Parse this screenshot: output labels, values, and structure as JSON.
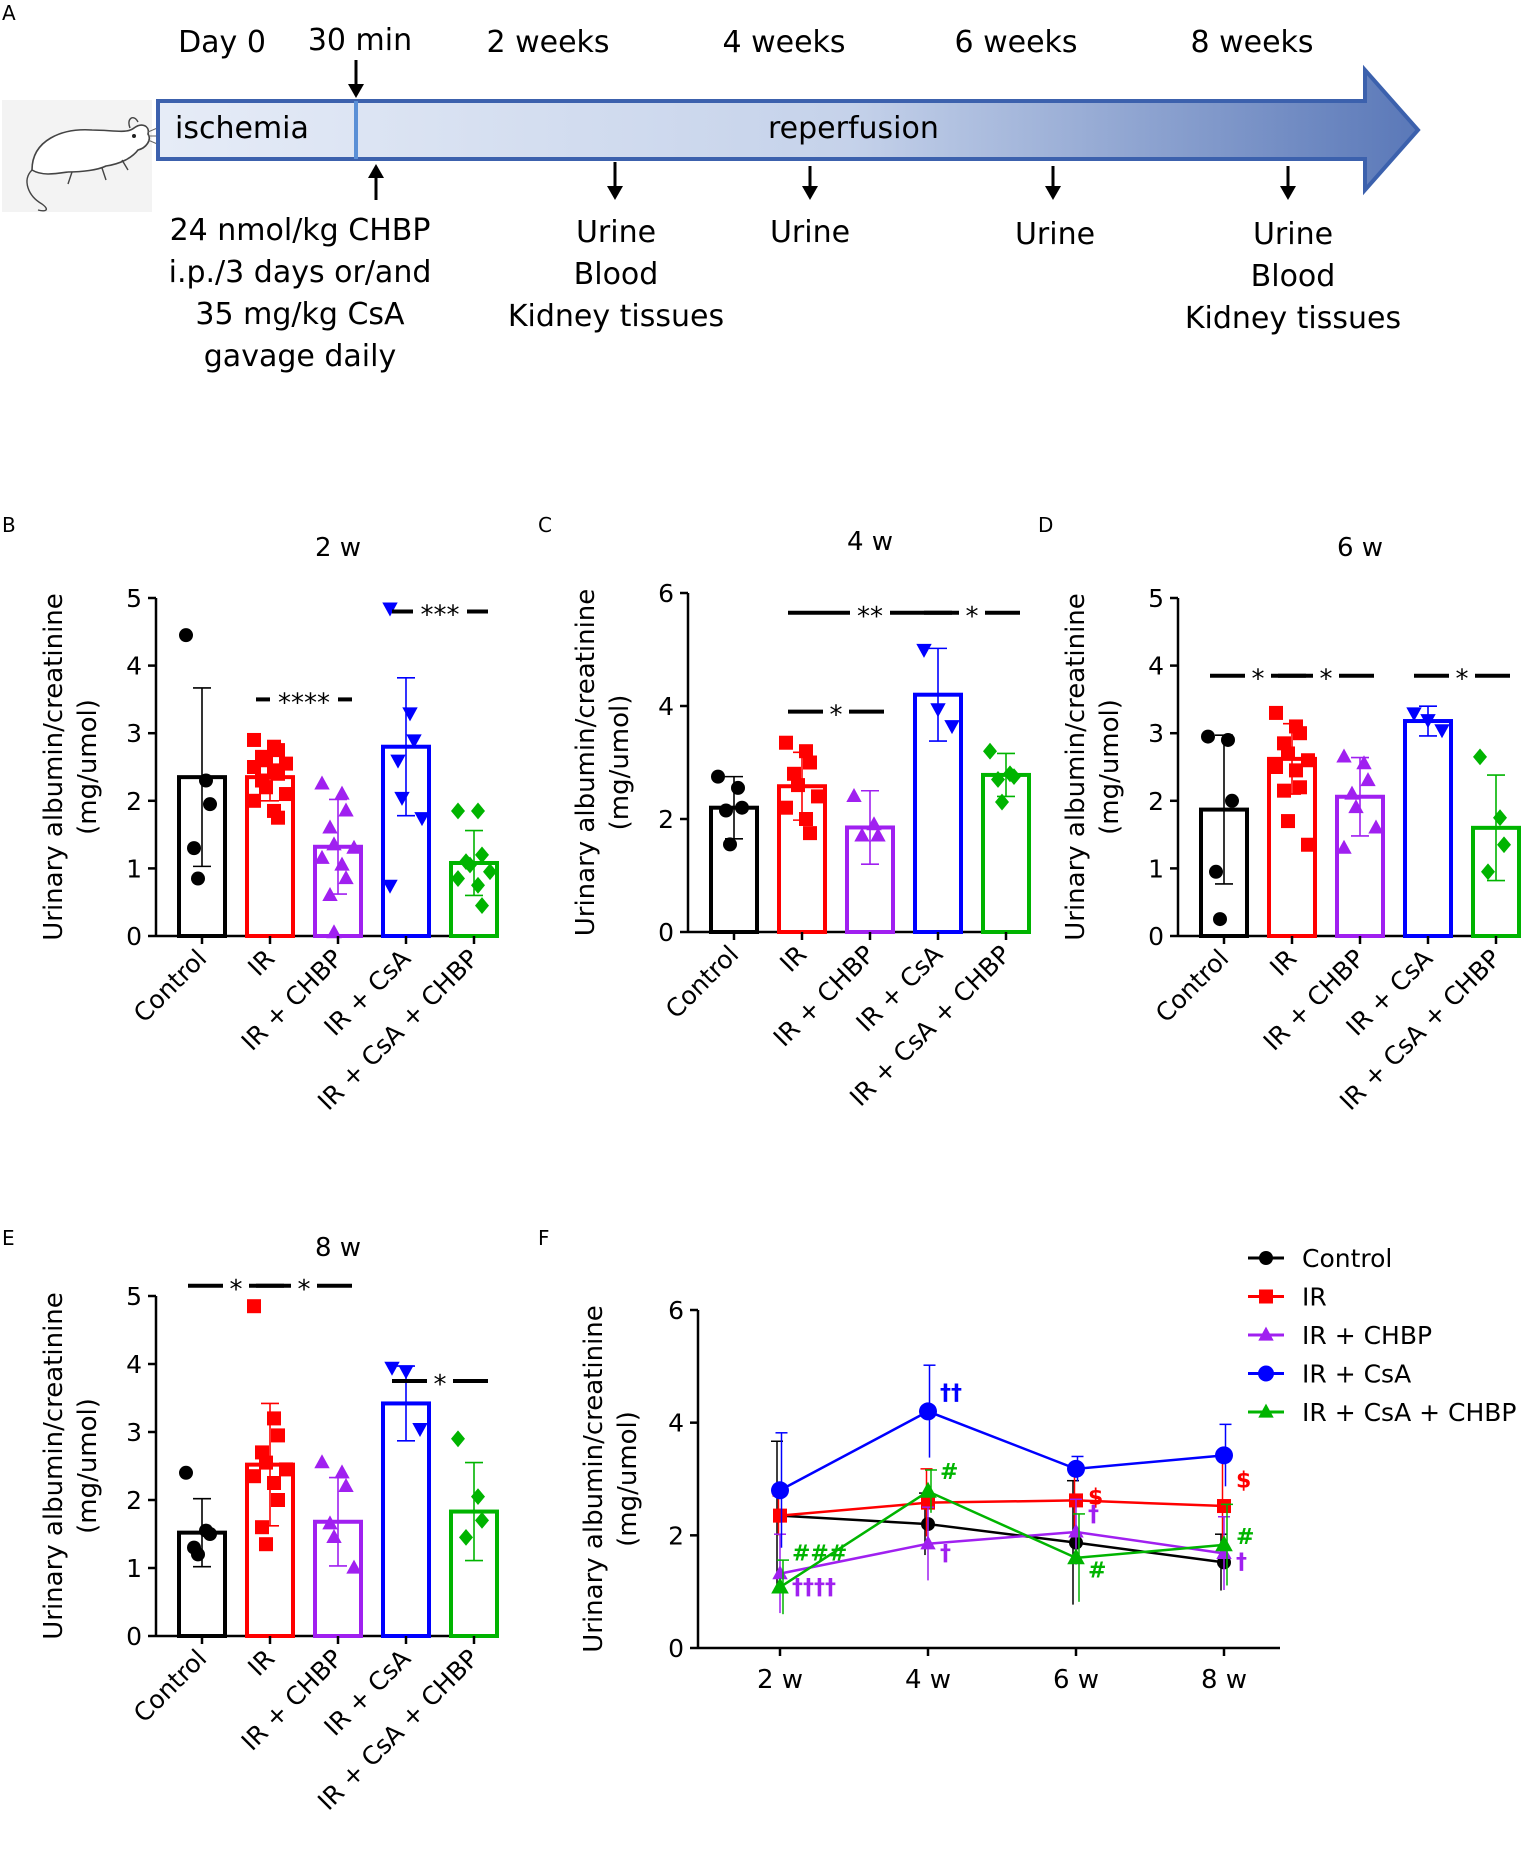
{
  "colors": {
    "Control": "#000000",
    "IR": "#ff0000",
    "IR + CHBP": "#a020f0",
    "IR + CsA": "#0000ff",
    "IR + CsA + CHBP": "#00b400"
  },
  "timeline": {
    "label": "A",
    "times": [
      "Day 0",
      "30 min",
      "2 weeks",
      "4 weeks",
      "6 weeks",
      "8 weeks"
    ],
    "phase1": "ischemia",
    "phase2": "reperfusion",
    "treatment": [
      "24 nmol/kg CHBP",
      "i.p./3 days or/and",
      "35 mg/kg CsA",
      "gavage daily"
    ],
    "samples_2w": [
      "Urine",
      "Blood",
      "Kidney tissues"
    ],
    "samples_4w": [
      "Urine"
    ],
    "samples_6w": [
      "Urine"
    ],
    "samples_8w": [
      "Urine",
      "Blood",
      "Kidney tissues"
    ]
  },
  "chart_data": [
    {
      "panel": "B",
      "type": "bar",
      "title": "2 w",
      "ylabel": [
        "Urinary albumin/creatinine",
        "(mg/umol)"
      ],
      "ylim": [
        0,
        5
      ],
      "yticks": [
        "0",
        "1",
        "2",
        "3",
        "4",
        "5"
      ],
      "categories": [
        "Control",
        "IR",
        "IR + CHBP",
        "IR + CsA",
        "IR + CsA + CHBP"
      ],
      "values": [
        2.35,
        2.35,
        1.32,
        2.8,
        1.08
      ],
      "sd": [
        1.32,
        0.35,
        0.7,
        1.02,
        0.48
      ],
      "points": [
        [
          4.45,
          2.3,
          1.95,
          1.3,
          0.85
        ],
        [
          2.9,
          2.8,
          2.75,
          2.65,
          2.6,
          2.55,
          2.5,
          2.45,
          2.4,
          2.3,
          2.2,
          2.1,
          2.0,
          1.85,
          1.75
        ],
        [
          2.25,
          2.1,
          1.85,
          1.6,
          1.35,
          1.3,
          1.15,
          1.05,
          0.85,
          0.6,
          0.05
        ],
        [
          4.85,
          3.3,
          2.9,
          2.6,
          2.05,
          1.75,
          0.75
        ],
        [
          1.85,
          1.85,
          1.2,
          1.1,
          1.05,
          0.95,
          0.85,
          0.75,
          0.45
        ]
      ],
      "annotations": [
        {
          "from": 1,
          "to": 2,
          "y": 3.5,
          "text": "****"
        },
        {
          "from": 3,
          "to": 4,
          "y": 4.8,
          "text": "***"
        }
      ]
    },
    {
      "panel": "C",
      "type": "bar",
      "title": "4 w",
      "ylabel": [
        "Urinary albumin/creatinine",
        "(mg/umol)"
      ],
      "ylim": [
        0,
        6
      ],
      "yticks": [
        "0",
        "2",
        "4",
        "6"
      ],
      "categories": [
        "Control",
        "IR",
        "IR + CHBP",
        "IR + CsA",
        "IR + CsA + CHBP"
      ],
      "values": [
        2.2,
        2.58,
        1.85,
        4.2,
        2.78
      ],
      "sd": [
        0.55,
        0.6,
        0.65,
        0.82,
        0.38
      ],
      "points": [
        [
          2.75,
          2.55,
          2.2,
          2.15,
          1.55
        ],
        [
          3.35,
          3.2,
          3.0,
          2.8,
          2.6,
          2.4,
          2.2,
          2.0,
          1.75
        ],
        [
          2.4,
          1.9,
          1.7,
          1.7
        ],
        [
          5.0,
          3.95,
          3.65
        ],
        [
          3.2,
          2.8,
          2.75,
          2.7,
          2.3
        ]
      ],
      "annotations": [
        {
          "from": 1,
          "to": 3,
          "y": 5.65,
          "text": "**"
        },
        {
          "from": 3,
          "to": 4,
          "y": 5.65,
          "text": "*"
        },
        {
          "from": 1,
          "to": 2,
          "y": 3.9,
          "text": "*"
        }
      ]
    },
    {
      "panel": "D",
      "type": "bar",
      "title": "6 w",
      "ylabel": [
        "Urinary albumin/creatinine",
        "(mg/umol)"
      ],
      "ylim": [
        0,
        5
      ],
      "yticks": [
        "0",
        "1",
        "2",
        "3",
        "4",
        "5"
      ],
      "categories": [
        "Control",
        "IR",
        "IR + CHBP",
        "IR + CsA",
        "IR + CsA + CHBP"
      ],
      "values": [
        1.87,
        2.62,
        2.06,
        3.18,
        1.6
      ],
      "sd": [
        1.1,
        0.52,
        0.58,
        0.22,
        0.78
      ],
      "points": [
        [
          2.95,
          2.9,
          2.0,
          0.95,
          0.25
        ],
        [
          3.3,
          3.1,
          3.0,
          2.85,
          2.7,
          2.6,
          2.5,
          2.45,
          2.2,
          2.15,
          1.7,
          1.35
        ],
        [
          2.65,
          2.55,
          2.3,
          2.1,
          1.9,
          1.6,
          1.3
        ],
        [
          3.3,
          3.2,
          3.05
        ],
        [
          2.65,
          1.75,
          1.35,
          0.95
        ]
      ],
      "annotations": [
        {
          "from": 0,
          "to": 1,
          "y": 3.85,
          "text": "*"
        },
        {
          "from": 1,
          "to": 2,
          "y": 3.85,
          "text": "*"
        },
        {
          "from": 3,
          "to": 4,
          "y": 3.85,
          "text": "*"
        }
      ]
    },
    {
      "panel": "E",
      "type": "bar",
      "title": "8 w",
      "ylabel": [
        "Urinary albumin/creatinine",
        "(mg/umol)"
      ],
      "ylim": [
        0,
        5
      ],
      "yticks": [
        "0",
        "1",
        "2",
        "3",
        "4",
        "5"
      ],
      "categories": [
        "Control",
        "IR",
        "IR + CHBP",
        "IR + CsA",
        "IR + CsA + CHBP"
      ],
      "values": [
        1.52,
        2.52,
        1.68,
        3.42,
        1.83
      ],
      "sd": [
        0.5,
        0.9,
        0.65,
        0.55,
        0.72
      ],
      "points": [
        [
          2.4,
          1.55,
          1.5,
          1.3,
          1.2
        ],
        [
          4.85,
          3.2,
          2.95,
          2.7,
          2.55,
          2.45,
          2.35,
          2.25,
          2.0,
          1.6,
          1.35
        ],
        [
          2.55,
          2.4,
          2.2,
          1.65,
          1.45,
          1.0
        ],
        [
          3.95,
          3.9,
          3.05
        ],
        [
          2.9,
          2.05,
          1.7,
          1.45
        ]
      ],
      "annotations": [
        {
          "from": 0,
          "to": 1,
          "y": 5.15,
          "text": "*"
        },
        {
          "from": 1,
          "to": 2,
          "y": 5.15,
          "text": "*"
        },
        {
          "from": 3,
          "to": 4,
          "y": 3.75,
          "text": "*"
        }
      ]
    },
    {
      "panel": "F",
      "type": "line",
      "title": "",
      "ylabel": [
        "Urinary albumin/creatinine",
        "(mg/umol)"
      ],
      "ylim": [
        0,
        6
      ],
      "yticks": [
        "0",
        "2",
        "4",
        "6"
      ],
      "x": [
        "2 w",
        "4 w",
        "6 w",
        "8 w"
      ],
      "series": [
        {
          "name": "Control",
          "values": [
            2.35,
            2.2,
            1.87,
            1.52
          ],
          "sd": [
            1.32,
            0.55,
            1.1,
            0.5
          ]
        },
        {
          "name": "IR",
          "values": [
            2.35,
            2.58,
            2.62,
            2.52
          ],
          "sd": [
            0.35,
            0.6,
            0.52,
            0.9
          ]
        },
        {
          "name": "IR + CHBP",
          "values": [
            1.32,
            1.85,
            2.06,
            1.68
          ],
          "sd": [
            0.7,
            0.65,
            0.58,
            0.65
          ]
        },
        {
          "name": "IR + CsA",
          "values": [
            2.8,
            4.2,
            3.18,
            3.42
          ],
          "sd": [
            1.02,
            0.82,
            0.22,
            0.55
          ]
        },
        {
          "name": "IR + CsA + CHBP",
          "values": [
            1.08,
            2.78,
            1.6,
            1.83
          ],
          "sd": [
            0.48,
            0.38,
            0.78,
            0.72
          ]
        }
      ],
      "annotations": [
        {
          "text": "††",
          "series": "IR + CsA",
          "x": 1,
          "y": 4.4
        },
        {
          "text": "#",
          "series": "IR + CsA + CHBP",
          "x": 1,
          "y": 3.0
        },
        {
          "text": "$",
          "series": "IR",
          "x": 2,
          "y": 2.55
        },
        {
          "text": "$",
          "series": "IR",
          "x": 3,
          "y": 2.85
        },
        {
          "text": "†",
          "series": "IR + CHBP",
          "x": 2,
          "y": 2.25
        },
        {
          "text": "###",
          "series": "IR + CsA + CHBP",
          "x": 0,
          "y": 1.55
        },
        {
          "text": "††††",
          "series": "IR + CHBP",
          "x": 0,
          "y": 0.95
        },
        {
          "text": "†",
          "series": "IR + CHBP",
          "x": 1,
          "y": 1.55
        },
        {
          "text": "#",
          "series": "IR + CsA + CHBP",
          "x": 2,
          "y": 1.25
        },
        {
          "text": "#",
          "series": "IR + CsA + CHBP",
          "x": 3,
          "y": 1.85
        },
        {
          "text": "†",
          "series": "IR + CHBP",
          "x": 3,
          "y": 1.4
        }
      ],
      "legend": [
        "Control",
        "IR",
        "IR + CHBP",
        "IR + CsA",
        "IR + CsA + CHBP"
      ]
    }
  ]
}
